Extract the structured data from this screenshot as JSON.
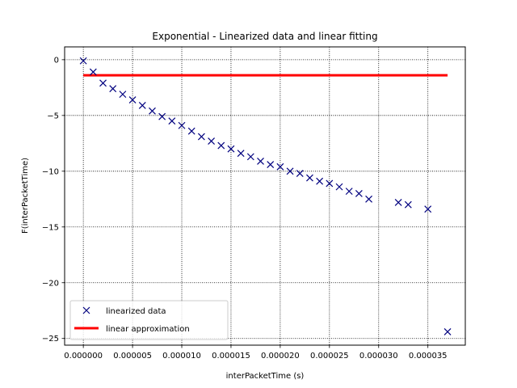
{
  "chart_data": {
    "type": "scatter",
    "title": "Exponential - Linearized data and linear fitting",
    "xlabel": "interPacketTime (s)",
    "ylabel": "F(interPacketTime)",
    "xlim": [
      -1.9e-06,
      3.88e-05
    ],
    "ylim": [
      -25.6,
      1.15
    ],
    "x_ticks": [
      0,
      5e-06,
      1e-05,
      1.5e-05,
      2e-05,
      2.5e-05,
      3e-05,
      3.5e-05
    ],
    "x_tick_labels": [
      "0.000000",
      "0.000005",
      "0.000010",
      "0.000015",
      "0.000020",
      "0.000025",
      "0.000030",
      "0.000035"
    ],
    "y_ticks": [
      0,
      -5,
      -10,
      -15,
      -20,
      -25
    ],
    "y_tick_labels": [
      "0",
      "−5",
      "−10",
      "−15",
      "−20",
      "−25"
    ],
    "grid": true,
    "legend_position": "lower-left",
    "series": [
      {
        "name": "linearized data",
        "kind": "markers",
        "marker": "x",
        "color": "#00007f",
        "x": [
          0,
          1e-06,
          2e-06,
          3e-06,
          4e-06,
          5e-06,
          6e-06,
          7e-06,
          8e-06,
          9e-06,
          1e-05,
          1.1e-05,
          1.2e-05,
          1.3e-05,
          1.4e-05,
          1.5e-05,
          1.6e-05,
          1.7e-05,
          1.8e-05,
          1.9e-05,
          2e-05,
          2.1e-05,
          2.2e-05,
          2.3e-05,
          2.4e-05,
          2.5e-05,
          2.6e-05,
          2.7e-05,
          2.8e-05,
          2.9e-05,
          3.2e-05,
          3.3e-05,
          3.5e-05,
          3.7e-05
        ],
        "y": [
          -0.1,
          -1.1,
          -2.1,
          -2.6,
          -3.1,
          -3.6,
          -4.1,
          -4.6,
          -5.1,
          -5.5,
          -5.9,
          -6.4,
          -6.9,
          -7.3,
          -7.7,
          -8.0,
          -8.4,
          -8.7,
          -9.1,
          -9.4,
          -9.6,
          -10.0,
          -10.2,
          -10.6,
          -10.9,
          -11.1,
          -11.4,
          -11.8,
          -12.0,
          -12.5,
          -12.8,
          -13.0,
          -13.4,
          -24.4
        ]
      },
      {
        "name": "linear approximation",
        "kind": "line",
        "color": "#ff0000",
        "x": [
          0,
          3.7e-05
        ],
        "y": [
          -1.4,
          -1.4
        ]
      }
    ]
  }
}
